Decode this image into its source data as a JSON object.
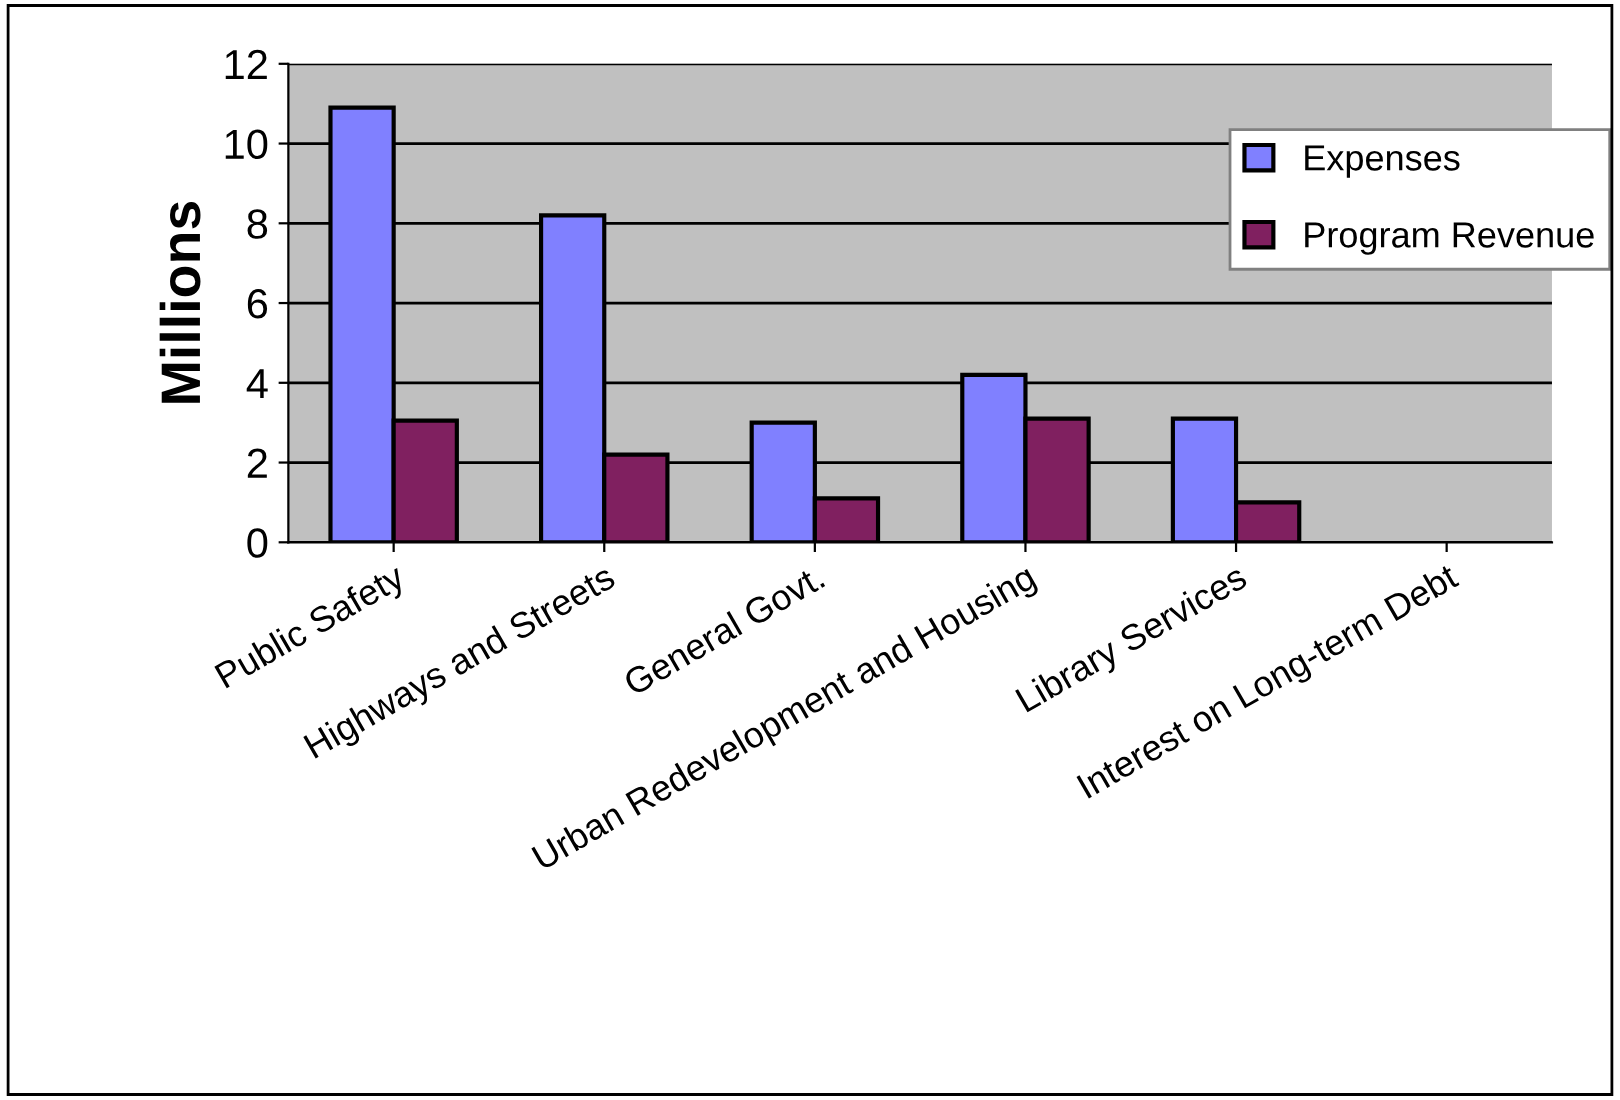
{
  "chart_data": {
    "type": "bar",
    "ylabel": "Millions",
    "categories": [
      "Public Safety",
      "Highways and Streets",
      "General Govt.",
      "Urban Redevelopment and Housing",
      "Library Services",
      "Interest on Long-term Debt"
    ],
    "series": [
      {
        "name": "Expenses",
        "color": "#8080ff",
        "values": [
          10.9,
          8.2,
          3.0,
          4.2,
          3.1,
          null
        ]
      },
      {
        "name": "Program Revenue",
        "color": "#802060",
        "values": [
          3.05,
          2.2,
          1.1,
          3.1,
          1.0,
          null
        ]
      }
    ],
    "ylim": [
      0,
      12
    ],
    "yticks": [
      0,
      2,
      4,
      6,
      8,
      10,
      12
    ],
    "grid": "y",
    "legend": "top right"
  }
}
